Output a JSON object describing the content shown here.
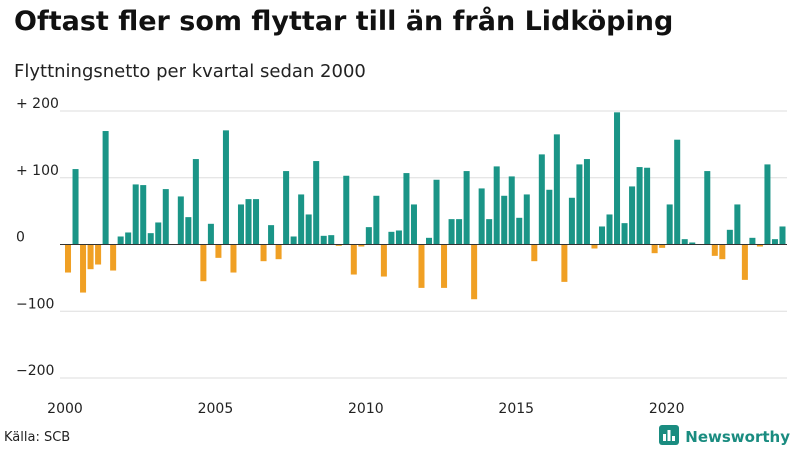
{
  "header": {
    "title": "Oftast fler som flyttar till än från Lidköping",
    "subtitle": "Flyttningsnetto per kvartal sedan 2000"
  },
  "footer": {
    "source": "Källa: SCB",
    "brand": "Newsworthy",
    "brand_icon": "bar-chart-icon"
  },
  "colors": {
    "positive": "#1a9587",
    "negative": "#f0a024",
    "grid": "#dddddd",
    "baseline": "#333333",
    "brand": "#1a8c80"
  },
  "chart_data": {
    "type": "bar",
    "title": "Oftast fler som flyttar till än från Lidköping",
    "subtitle": "Flyttningsnetto per kvartal sedan 2000",
    "xlabel": "",
    "ylabel": "",
    "ylim": [
      -200,
      200
    ],
    "yticks": [
      200,
      100,
      0,
      -100,
      -200
    ],
    "ytick_labels": [
      "+ 200",
      "+ 100",
      "0",
      "−100",
      "−200"
    ],
    "xticks": [
      "2000",
      "2005",
      "2010",
      "2015",
      "2020"
    ],
    "grid": true,
    "legend": "none",
    "start_year": 2000,
    "values": [
      -42,
      113,
      -72,
      -37,
      -30,
      170,
      -39,
      12,
      18,
      90,
      89,
      17,
      33,
      83,
      0,
      72,
      41,
      128,
      -55,
      31,
      -20,
      171,
      -42,
      60,
      68,
      68,
      -25,
      29,
      -22,
      110,
      12,
      75,
      45,
      125,
      13,
      14,
      -2,
      103,
      -45,
      -3,
      26,
      73,
      -48,
      19,
      21,
      107,
      60,
      -65,
      10,
      97,
      -65,
      38,
      38,
      110,
      -82,
      84,
      38,
      117,
      73,
      102,
      40,
      75,
      -25,
      135,
      82,
      165,
      -56,
      70,
      120,
      128,
      -6,
      27,
      45,
      198,
      32,
      87,
      116,
      115,
      -13,
      -5,
      60,
      157,
      8,
      3,
      0,
      110,
      -17,
      -22,
      22,
      60,
      -53,
      10,
      -3,
      120,
      8,
      27
    ]
  }
}
